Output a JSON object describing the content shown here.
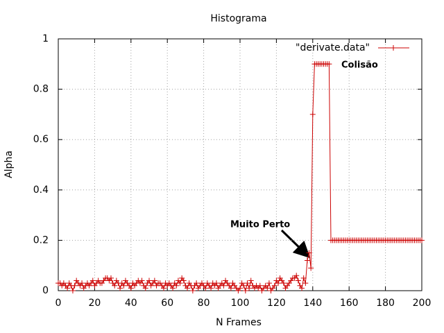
{
  "chart_data": {
    "type": "line",
    "title": "Histograma",
    "x_label": "N Frames",
    "y_label": "Alpha",
    "series": [
      {
        "name": "\"derivate.data\"",
        "color": "#cc0000",
        "values": [
          0.03,
          0.03,
          0.02,
          0.03,
          0.02,
          0.01,
          0.03,
          0.02,
          0.0,
          0.02,
          0.04,
          0.03,
          0.02,
          0.03,
          0.01,
          0.02,
          0.03,
          0.02,
          0.03,
          0.04,
          0.02,
          0.03,
          0.04,
          0.03,
          0.03,
          0.04,
          0.05,
          0.05,
          0.04,
          0.05,
          0.03,
          0.02,
          0.04,
          0.03,
          0.01,
          0.03,
          0.02,
          0.04,
          0.03,
          0.02,
          0.01,
          0.03,
          0.02,
          0.03,
          0.04,
          0.03,
          0.04,
          0.02,
          0.01,
          0.03,
          0.04,
          0.02,
          0.03,
          0.04,
          0.02,
          0.03,
          0.03,
          0.02,
          0.01,
          0.03,
          0.02,
          0.03,
          0.02,
          0.01,
          0.03,
          0.02,
          0.04,
          0.03,
          0.05,
          0.04,
          0.02,
          0.01,
          0.03,
          0.02,
          0.0,
          0.02,
          0.03,
          0.01,
          0.02,
          0.03,
          0.02,
          0.01,
          0.03,
          0.02,
          0.01,
          0.03,
          0.02,
          0.03,
          0.01,
          0.02,
          0.03,
          0.02,
          0.04,
          0.03,
          0.02,
          0.01,
          0.03,
          0.02,
          0.01,
          0.0,
          0.01,
          0.03,
          0.02,
          0.0,
          0.03,
          0.01,
          0.04,
          0.02,
          0.01,
          0.02,
          0.01,
          0.02,
          0.0,
          0.01,
          0.02,
          0.01,
          0.03,
          0.0,
          0.01,
          0.02,
          0.04,
          0.03,
          0.05,
          0.04,
          0.03,
          0.01,
          0.02,
          0.03,
          0.04,
          0.05,
          0.05,
          0.06,
          0.04,
          0.02,
          0.01,
          0.05,
          0.03,
          0.12,
          0.15,
          0.09,
          0.7,
          0.9,
          0.9,
          0.9,
          0.9,
          0.9,
          0.9,
          0.9,
          0.9,
          0.9,
          0.2,
          0.2,
          0.2,
          0.2,
          0.2,
          0.2,
          0.2,
          0.2,
          0.2,
          0.2,
          0.2,
          0.2,
          0.2,
          0.2,
          0.2,
          0.2,
          0.2,
          0.2,
          0.2,
          0.2,
          0.2,
          0.2,
          0.2,
          0.2,
          0.2,
          0.2,
          0.2,
          0.2,
          0.2,
          0.2,
          0.2,
          0.2,
          0.2,
          0.2,
          0.2,
          0.2,
          0.2,
          0.2,
          0.2,
          0.2,
          0.2,
          0.2,
          0.2,
          0.2,
          0.2,
          0.2,
          0.2,
          0.2,
          0.2,
          0.2,
          0.2
        ]
      }
    ],
    "x": [
      0,
      1,
      2,
      3,
      4,
      5,
      6,
      7,
      8,
      9,
      10,
      11,
      12,
      13,
      14,
      15,
      16,
      17,
      18,
      19,
      20,
      21,
      22,
      23,
      24,
      25,
      26,
      27,
      28,
      29,
      30,
      31,
      32,
      33,
      34,
      35,
      36,
      37,
      38,
      39,
      40,
      41,
      42,
      43,
      44,
      45,
      46,
      47,
      48,
      49,
      50,
      51,
      52,
      53,
      54,
      55,
      56,
      57,
      58,
      59,
      60,
      61,
      62,
      63,
      64,
      65,
      66,
      67,
      68,
      69,
      70,
      71,
      72,
      73,
      74,
      75,
      76,
      77,
      78,
      79,
      80,
      81,
      82,
      83,
      84,
      85,
      86,
      87,
      88,
      89,
      90,
      91,
      92,
      93,
      94,
      95,
      96,
      97,
      98,
      99,
      100,
      101,
      102,
      103,
      104,
      105,
      106,
      107,
      108,
      109,
      110,
      111,
      112,
      113,
      114,
      115,
      116,
      117,
      118,
      119,
      120,
      121,
      122,
      123,
      124,
      125,
      126,
      127,
      128,
      129,
      130,
      131,
      132,
      133,
      134,
      135,
      136,
      137,
      138,
      139,
      140,
      141,
      142,
      143,
      144,
      145,
      146,
      147,
      148,
      149,
      150,
      151,
      152,
      153,
      154,
      155,
      156,
      157,
      158,
      159,
      160,
      161,
      162,
      163,
      164,
      165,
      166,
      167,
      168,
      169,
      170,
      171,
      172,
      173,
      174,
      175,
      176,
      177,
      178,
      179,
      180,
      181,
      182,
      183,
      184,
      185,
      186,
      187,
      188,
      189,
      190,
      191,
      192,
      193,
      194,
      195,
      196,
      197,
      198,
      199,
      200
    ],
    "xlim": [
      0,
      200
    ],
    "xticks": [
      0,
      20,
      40,
      60,
      80,
      100,
      120,
      140,
      160,
      180,
      200
    ],
    "ylim": [
      0,
      1
    ],
    "yticks": [
      0,
      0.2,
      0.4,
      0.6,
      0.8,
      1
    ],
    "grid": true,
    "legend": "top-right",
    "annotations": [
      {
        "text": "Muito Perto"
      },
      {
        "text": "Colisão"
      }
    ]
  }
}
